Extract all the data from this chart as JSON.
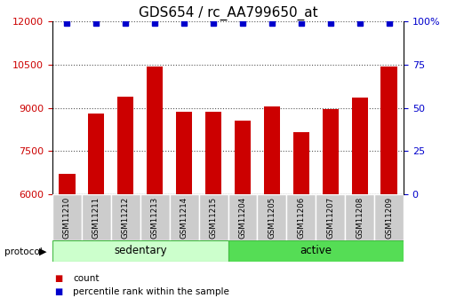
{
  "title": "GDS654 / rc_AA799650_at",
  "categories": [
    "GSM11210",
    "GSM11211",
    "GSM11212",
    "GSM11213",
    "GSM11214",
    "GSM11215",
    "GSM11204",
    "GSM11205",
    "GSM11206",
    "GSM11207",
    "GSM11208",
    "GSM11209"
  ],
  "bar_values": [
    6700,
    8800,
    9400,
    10450,
    8850,
    8850,
    8550,
    9050,
    8150,
    8950,
    9350,
    10450
  ],
  "percentile_values": [
    99,
    99,
    99,
    99,
    99,
    99,
    99,
    99,
    99,
    99,
    99,
    99
  ],
  "bar_color": "#cc0000",
  "percentile_color": "#0000cc",
  "ylim_left": [
    6000,
    12000
  ],
  "ylim_right": [
    0,
    100
  ],
  "yticks_left": [
    6000,
    7500,
    9000,
    10500,
    12000
  ],
  "yticks_right": [
    0,
    25,
    50,
    75,
    100
  ],
  "ytick_labels_right": [
    "0",
    "25",
    "50",
    "75",
    "100%"
  ],
  "grid_color": "#888888",
  "sedentary_indices": [
    0,
    1,
    2,
    3,
    4,
    5
  ],
  "active_indices": [
    6,
    7,
    8,
    9,
    10,
    11
  ],
  "sedentary_color": "#ccffcc",
  "active_color": "#55dd55",
  "protocol_label": "protocol",
  "sedentary_label": "sedentary",
  "active_label": "active",
  "legend_count": "count",
  "legend_percentile": "percentile rank within the sample",
  "bg_color": "#ffffff",
  "tick_label_bg": "#cccccc",
  "title_fontsize": 11,
  "axis_fontsize": 8,
  "bar_width": 0.55
}
